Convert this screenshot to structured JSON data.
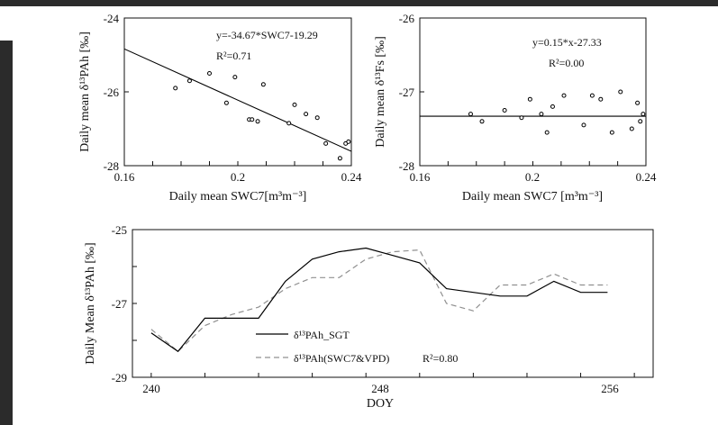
{
  "chart_data": [
    {
      "type": "scatter",
      "xlabel": "Daily mean SWC7[m³m⁻³]",
      "ylabel": "Daily mean  δ¹³PAh [‰]",
      "xlim": [
        0.16,
        0.24
      ],
      "ylim": [
        -28,
        -24
      ],
      "xticks": [
        "0.16",
        "0.2",
        "0.24"
      ],
      "yticks": [
        "-24",
        "-26",
        "-28"
      ],
      "annotation_eq": "y=-34.67*SWC7-19.29",
      "annotation_r2": "R²=0.71",
      "points": [
        {
          "x": 0.178,
          "y": -25.9
        },
        {
          "x": 0.183,
          "y": -25.7
        },
        {
          "x": 0.19,
          "y": -25.5
        },
        {
          "x": 0.196,
          "y": -26.3
        },
        {
          "x": 0.199,
          "y": -25.6
        },
        {
          "x": 0.204,
          "y": -26.75
        },
        {
          "x": 0.205,
          "y": -26.75
        },
        {
          "x": 0.207,
          "y": -26.8
        },
        {
          "x": 0.209,
          "y": -25.8
        },
        {
          "x": 0.218,
          "y": -26.85
        },
        {
          "x": 0.22,
          "y": -26.35
        },
        {
          "x": 0.224,
          "y": -26.6
        },
        {
          "x": 0.228,
          "y": -26.7
        },
        {
          "x": 0.231,
          "y": -27.4
        },
        {
          "x": 0.236,
          "y": -27.8
        },
        {
          "x": 0.238,
          "y": -27.4
        },
        {
          "x": 0.239,
          "y": -27.35
        }
      ],
      "fit": {
        "slope": -34.67,
        "intercept": -19.29
      }
    },
    {
      "type": "scatter",
      "xlabel": "Daily mean SWC7 [m³m⁻³]",
      "ylabel": "Daily mean  δ¹³Fs [‰]",
      "xlim": [
        0.16,
        0.24
      ],
      "ylim": [
        -28,
        -26
      ],
      "xticks": [
        "0.16",
        "0.2",
        "0.24"
      ],
      "yticks": [
        "-26",
        "-27",
        "-28"
      ],
      "annotation_eq": "y=0.15*x-27.33",
      "annotation_r2": "R²=0.00",
      "points": [
        {
          "x": 0.178,
          "y": -27.3
        },
        {
          "x": 0.182,
          "y": -27.4
        },
        {
          "x": 0.19,
          "y": -27.25
        },
        {
          "x": 0.196,
          "y": -27.35
        },
        {
          "x": 0.199,
          "y": -27.1
        },
        {
          "x": 0.203,
          "y": -27.3
        },
        {
          "x": 0.205,
          "y": -27.55
        },
        {
          "x": 0.207,
          "y": -27.2
        },
        {
          "x": 0.211,
          "y": -27.05
        },
        {
          "x": 0.218,
          "y": -27.45
        },
        {
          "x": 0.221,
          "y": -27.05
        },
        {
          "x": 0.224,
          "y": -27.1
        },
        {
          "x": 0.228,
          "y": -27.55
        },
        {
          "x": 0.231,
          "y": -27.0
        },
        {
          "x": 0.235,
          "y": -27.5
        },
        {
          "x": 0.237,
          "y": -27.15
        },
        {
          "x": 0.238,
          "y": -27.4
        },
        {
          "x": 0.239,
          "y": -27.3
        }
      ],
      "fit": {
        "slope": 0.15,
        "intercept": -27.33
      }
    },
    {
      "type": "line",
      "xlabel": "DOY",
      "ylabel": "Daily Mean  δ¹³PAh [‰]",
      "xlim": [
        239.3,
        258.7
      ],
      "ylim": [
        -29,
        -25
      ],
      "xticks": [
        "240",
        "248",
        "256"
      ],
      "yticks": [
        "-25",
        "-27",
        "-29"
      ],
      "x": [
        240,
        241,
        242,
        243,
        244,
        245,
        246,
        247,
        248,
        249,
        250,
        251,
        252,
        253,
        254,
        255,
        256,
        257
      ],
      "series": [
        {
          "name": "δ¹³PAh_SGT",
          "color": "#000000",
          "dash": "solid",
          "values": [
            -27.8,
            -28.3,
            -27.4,
            -27.4,
            -27.4,
            -26.4,
            -25.8,
            -25.6,
            -25.5,
            -25.7,
            -25.9,
            -26.6,
            -26.7,
            -26.8,
            -26.8,
            -26.4,
            -26.7,
            -26.7
          ]
        },
        {
          "name": "δ¹³PAh(SWC7&VPD)",
          "color": "#909090",
          "dash": "dashed",
          "values": [
            -27.7,
            -28.3,
            -27.6,
            -27.3,
            -27.1,
            -26.6,
            -26.3,
            -26.3,
            -25.8,
            -25.6,
            -25.55,
            -27.0,
            -27.2,
            -26.5,
            -26.5,
            -26.2,
            -26.5,
            -26.5
          ]
        }
      ],
      "legend_r2": "R²=0.80",
      "legend_position": "bottom-center"
    }
  ]
}
